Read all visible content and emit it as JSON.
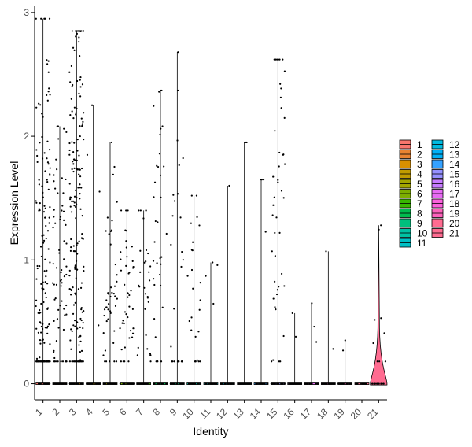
{
  "chart_data": {
    "type": "violin",
    "xlabel": "Identity",
    "ylabel": "Expression Level",
    "categories": [
      "1",
      "2",
      "3",
      "4",
      "5",
      "6",
      "7",
      "8",
      "9",
      "10",
      "11",
      "12",
      "13",
      "14",
      "15",
      "16",
      "17",
      "18",
      "19",
      "20",
      "21"
    ],
    "ylim": [
      -0.13,
      3.05
    ],
    "yticks": [
      "0",
      "1",
      "2",
      "3"
    ],
    "ytick_values": [
      0,
      1,
      2,
      3
    ],
    "colors": [
      "#F8766D",
      "#EA8331",
      "#D89000",
      "#C09B00",
      "#A3A500",
      "#7CAE00",
      "#39B600",
      "#00BB4E",
      "#00BF7D",
      "#00C1A3",
      "#00BFC4",
      "#00BAE0",
      "#00B0F6",
      "#35A2FF",
      "#9590FF",
      "#C77CFF",
      "#E76BF3",
      "#FA62DB",
      "#FF62BC",
      "#FF6C91",
      "#FF6C91"
    ],
    "max_values": [
      2.95,
      2.08,
      2.85,
      2.25,
      1.95,
      1.4,
      1.4,
      2.37,
      2.68,
      1.52,
      0.98,
      1.6,
      1.95,
      1.65,
      2.62,
      0.57,
      0.65,
      1.07,
      0.35,
      0.0,
      1.28
    ],
    "nonzero_counts": [
      160,
      70,
      190,
      4,
      45,
      45,
      30,
      35,
      25,
      25,
      4,
      1,
      3,
      4,
      45,
      2,
      3,
      2,
      2,
      0,
      9
    ],
    "nonzero_centers": [
      0.9,
      0.9,
      1.4,
      0.9,
      0.6,
      0.6,
      0.7,
      1.0,
      0.9,
      0.7,
      0.7,
      1.6,
      1.3,
      1.6,
      1.3,
      0.55,
      0.5,
      0.8,
      0.3,
      0,
      0.6
    ],
    "violin_21_peak_width": 0.55,
    "legend_position": "right",
    "legend_entries": [
      "1",
      "2",
      "3",
      "4",
      "5",
      "6",
      "7",
      "8",
      "9",
      "10",
      "11",
      "12",
      "13",
      "14",
      "15",
      "16",
      "17",
      "18",
      "19",
      "20",
      "21"
    ],
    "grid": false
  }
}
